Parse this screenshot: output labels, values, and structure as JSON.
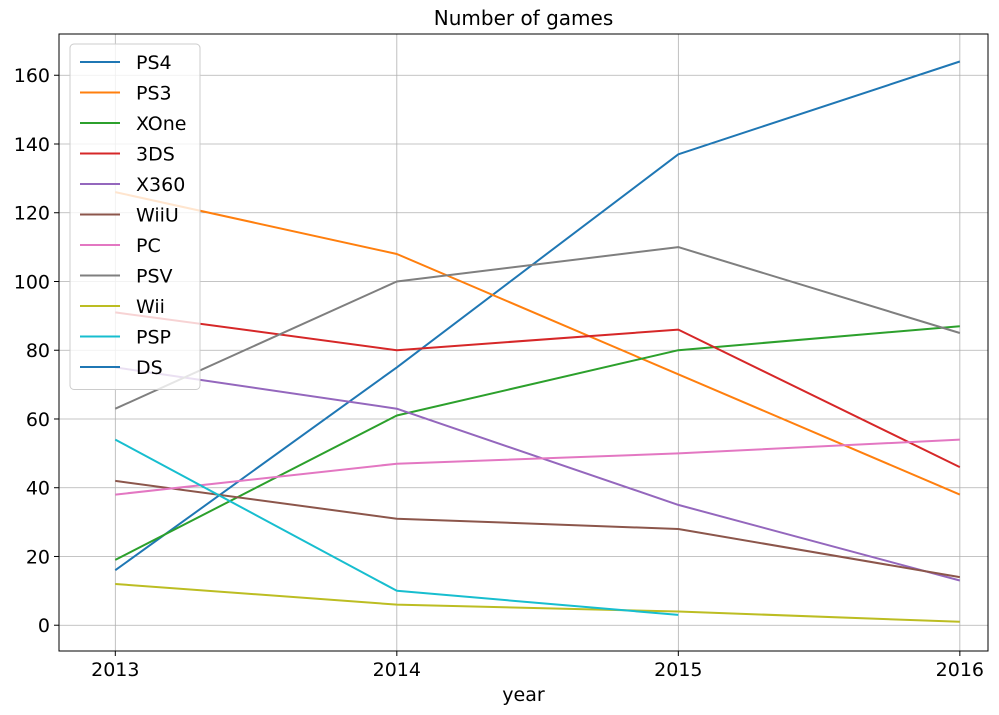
{
  "chart_data": {
    "type": "line",
    "title": "Number of games",
    "xlabel": "year",
    "ylabel": "",
    "x": [
      2013,
      2014,
      2015,
      2016
    ],
    "xlim": [
      2012.8,
      2016.1
    ],
    "ylim": [
      -7.5,
      172
    ],
    "yticks": [
      0,
      20,
      40,
      60,
      80,
      100,
      120,
      140,
      160
    ],
    "grid": true,
    "legend_position": "top-left",
    "series": [
      {
        "name": "PS4",
        "color": "#1f77b4",
        "values": [
          16,
          75,
          137,
          164
        ]
      },
      {
        "name": "PS3",
        "color": "#ff7f0e",
        "values": [
          126,
          108,
          73,
          38
        ]
      },
      {
        "name": "XOne",
        "color": "#2ca02c",
        "values": [
          19,
          61,
          80,
          87
        ]
      },
      {
        "name": "3DS",
        "color": "#d62728",
        "values": [
          91,
          80,
          86,
          46
        ]
      },
      {
        "name": "X360",
        "color": "#9467bd",
        "values": [
          75,
          63,
          35,
          13
        ]
      },
      {
        "name": "WiiU",
        "color": "#8c564b",
        "values": [
          42,
          31,
          28,
          14
        ]
      },
      {
        "name": "PC",
        "color": "#e377c2",
        "values": [
          38,
          47,
          50,
          54
        ]
      },
      {
        "name": "PSV",
        "color": "#7f7f7f",
        "values": [
          63,
          100,
          110,
          85
        ]
      },
      {
        "name": "Wii",
        "color": "#bcbd22",
        "values": [
          12,
          6,
          4,
          1
        ]
      },
      {
        "name": "PSP",
        "color": "#17becf",
        "values": [
          54,
          10,
          3,
          null
        ]
      },
      {
        "name": "DS",
        "color": "#1f77b4",
        "values": [
          null,
          null,
          null,
          null
        ]
      }
    ]
  }
}
